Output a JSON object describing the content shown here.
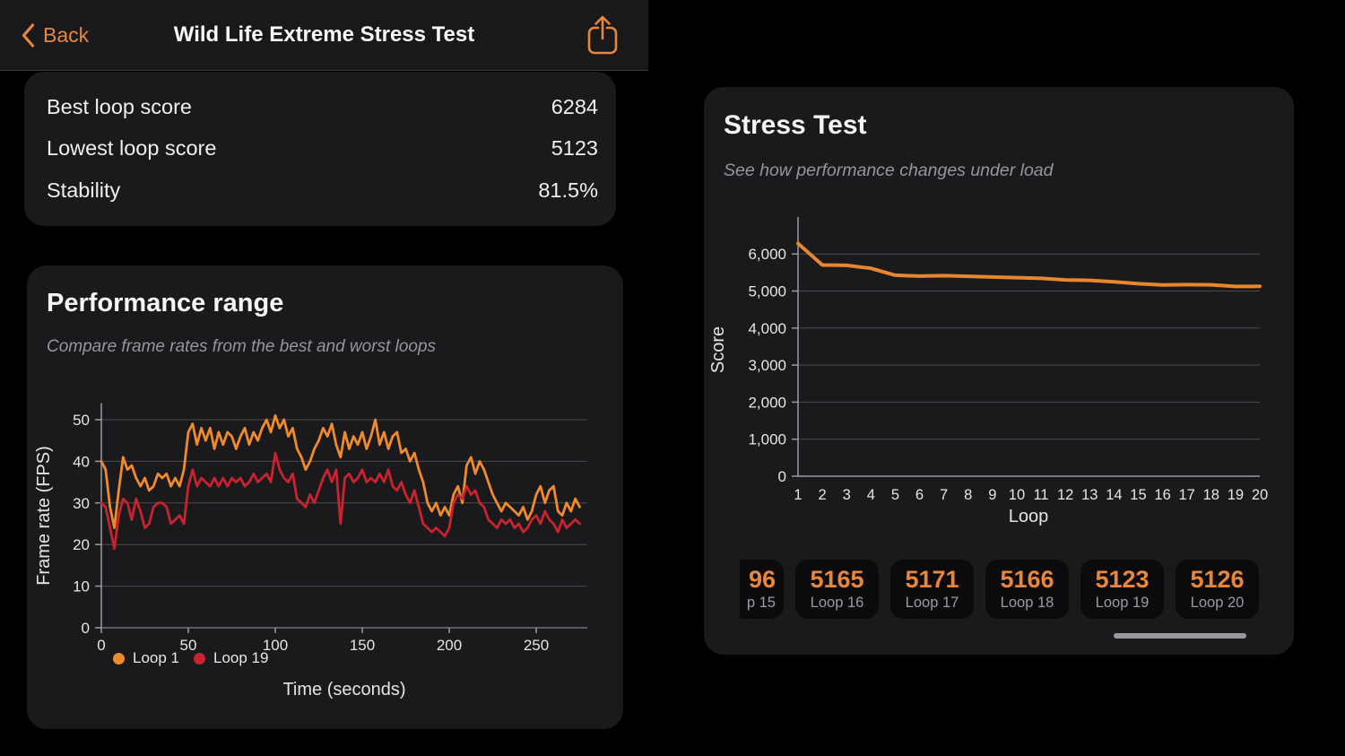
{
  "nav": {
    "back_label": "Back",
    "title": "Wild Life Extreme Stress Test"
  },
  "summary": {
    "rows": [
      {
        "label": "Best loop score",
        "value": "6284"
      },
      {
        "label": "Lowest loop score",
        "value": "5123"
      },
      {
        "label": "Stability",
        "value": "81.5%"
      }
    ]
  },
  "performance": {
    "title": "Performance range",
    "subtitle": "Compare frame rates from the best and worst loops"
  },
  "stress": {
    "title": "Stress Test",
    "subtitle": "See how performance changes under load",
    "chips": [
      {
        "score": "96",
        "label": "p 15"
      },
      {
        "score": "5165",
        "label": "Loop 16"
      },
      {
        "score": "5171",
        "label": "Loop 17"
      },
      {
        "score": "5166",
        "label": "Loop 18"
      },
      {
        "score": "5123",
        "label": "Loop 19"
      },
      {
        "score": "5126",
        "label": "Loop 20"
      }
    ]
  },
  "colors": {
    "accent_orange": "#E8873C",
    "chart_orange": "#F08A2D",
    "chart_red": "#C8232F",
    "background": "#000000",
    "card": "#1A1A1C",
    "grid": "#4A4A4E",
    "axis": "#9A9AA0",
    "tick_text": "#E6E6E9"
  },
  "chart_data": [
    {
      "type": "line",
      "title": "Performance range",
      "xlabel": "Time (seconds)",
      "ylabel": "Frame rate (FPS)",
      "x_start": 0,
      "x_step": 2.5,
      "xlim": [
        0,
        280
      ],
      "ylim": [
        0,
        55
      ],
      "x_ticks": [
        0,
        50,
        100,
        150,
        200,
        250
      ],
      "y_ticks": [
        0,
        10,
        20,
        30,
        40,
        50
      ],
      "grid": true,
      "legend_position": "bottom-left",
      "series": [
        {
          "name": "Loop 1",
          "color": "#F08A2D",
          "values": [
            40,
            38,
            29,
            24,
            33,
            41,
            38,
            39,
            36,
            34,
            36,
            33,
            34,
            37,
            36,
            37,
            34,
            36,
            34,
            38,
            47,
            49,
            44,
            48,
            45,
            48,
            43,
            47,
            44,
            47,
            46,
            43,
            46,
            48,
            44,
            47,
            45,
            48,
            50,
            47,
            51,
            48,
            50,
            46,
            48,
            43,
            41,
            38,
            40,
            43,
            45,
            48,
            46,
            49,
            44,
            41,
            47,
            43,
            46,
            44,
            47,
            43,
            46,
            50,
            44,
            47,
            43,
            46,
            47,
            42,
            43,
            40,
            42,
            38,
            35,
            30,
            28,
            30,
            27,
            29,
            27,
            32,
            34,
            30,
            39,
            41,
            37,
            40,
            38,
            35,
            32,
            30,
            28,
            30,
            29,
            28,
            27,
            29,
            26,
            28,
            32,
            34,
            30,
            33,
            34,
            28,
            27,
            30,
            28,
            31,
            29
          ]
        },
        {
          "name": "Loop 19",
          "color": "#C8232F",
          "values": [
            30,
            29,
            24,
            19,
            27,
            31,
            30,
            26,
            31,
            28,
            24,
            25,
            29,
            30,
            30,
            29,
            25,
            26,
            27,
            25,
            34,
            38,
            34,
            36,
            35,
            34,
            36,
            34,
            36,
            34,
            36,
            35,
            36,
            34,
            35,
            37,
            35,
            36,
            37,
            35,
            42,
            38,
            36,
            35,
            37,
            31,
            30,
            29,
            32,
            30,
            33,
            36,
            38,
            35,
            38,
            25,
            36,
            37,
            35,
            36,
            38,
            35,
            36,
            35,
            37,
            35,
            38,
            34,
            33,
            35,
            32,
            30,
            33,
            29,
            25,
            24,
            23,
            24,
            23,
            22,
            24,
            30,
            32,
            31,
            34,
            32,
            33,
            30,
            29,
            26,
            25,
            24,
            26,
            25,
            26,
            24,
            25,
            23,
            24,
            26,
            27,
            25,
            28,
            26,
            25,
            23,
            26,
            24,
            25,
            26,
            25
          ]
        }
      ]
    },
    {
      "type": "line",
      "title": "Stress Test",
      "xlabel": "Loop",
      "ylabel": "Score",
      "x_ticks": [
        1,
        2,
        3,
        4,
        5,
        6,
        7,
        8,
        9,
        10,
        11,
        12,
        13,
        14,
        15,
        16,
        17,
        18,
        19,
        20
      ],
      "y_ticks": [
        0,
        1000,
        2000,
        3000,
        4000,
        5000,
        6000
      ],
      "y_tick_labels": [
        "0",
        "1,000",
        "2,000",
        "3,000",
        "4,000",
        "5,000",
        "6,000"
      ],
      "xlim": [
        1,
        20
      ],
      "ylim": [
        0,
        6600
      ],
      "grid": true,
      "series": [
        {
          "name": "Score",
          "color": "#E8862F",
          "values": [
            6284,
            5702,
            5693,
            5612,
            5425,
            5402,
            5415,
            5398,
            5378,
            5360,
            5342,
            5301,
            5289,
            5248,
            5196,
            5165,
            5171,
            5166,
            5123,
            5126
          ]
        }
      ]
    }
  ]
}
